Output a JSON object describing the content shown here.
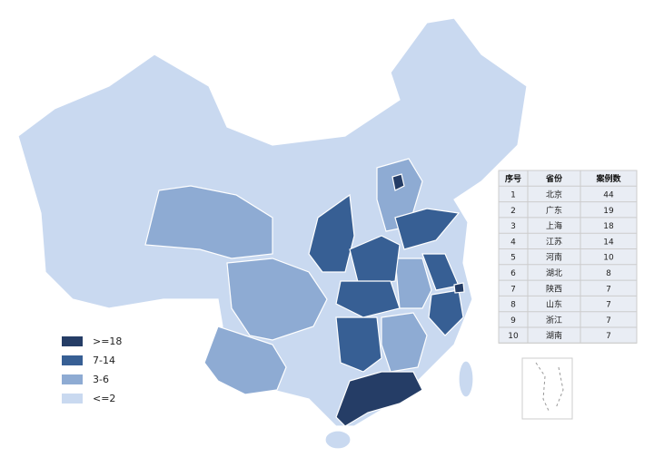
{
  "legend": [
    {
      "label": ">=18",
      "color": "#253d66"
    },
    {
      "label": "7-14",
      "color": "#375f94"
    },
    {
      "label": "3-6",
      "color": "#8eabd3"
    },
    {
      "label": "<=2",
      "color": "#c9d9f0"
    }
  ],
  "table": {
    "header": [
      "序号",
      "省份",
      "案例数"
    ],
    "rows": [
      [
        1,
        "北京",
        44
      ],
      [
        2,
        "广东",
        19
      ],
      [
        3,
        "上海",
        18
      ],
      [
        4,
        "江苏",
        14
      ],
      [
        5,
        "河南",
        10
      ],
      [
        6,
        "湖北",
        8
      ],
      [
        7,
        "陕西",
        7
      ],
      [
        8,
        "山东",
        7
      ],
      [
        9,
        "浙江",
        7
      ],
      [
        10,
        "湖南",
        7
      ]
    ]
  }
}
